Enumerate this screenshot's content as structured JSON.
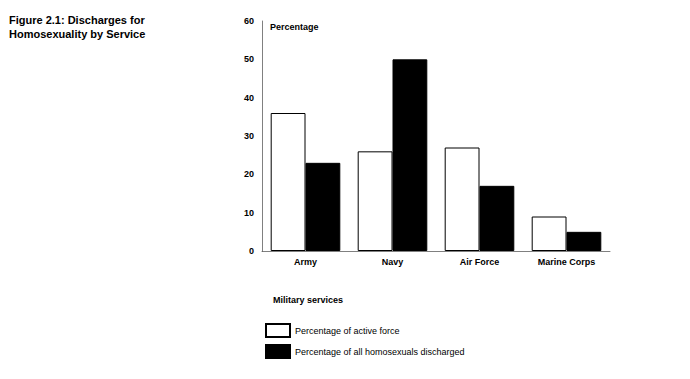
{
  "chart_data": {
    "type": "bar",
    "title": "Figure 2.1: Discharges for Homosexuality by Service",
    "x_label": "Military services",
    "y_label": "Percentage",
    "categories": [
      "Army",
      "Navy",
      "Air Force",
      "Marine Corps"
    ],
    "series": [
      {
        "name": "Percentage of active force",
        "color": "#ffffff",
        "values": [
          36,
          26,
          27,
          9
        ]
      },
      {
        "name": "Percentage of all homosexuals discharged",
        "color": "#000000",
        "values": [
          23,
          50,
          17,
          5
        ]
      }
    ],
    "ylim": [
      0,
      60
    ],
    "yticks": [
      0,
      10,
      20,
      30,
      40,
      50,
      60
    ],
    "grid": false,
    "legend": "bottom"
  }
}
